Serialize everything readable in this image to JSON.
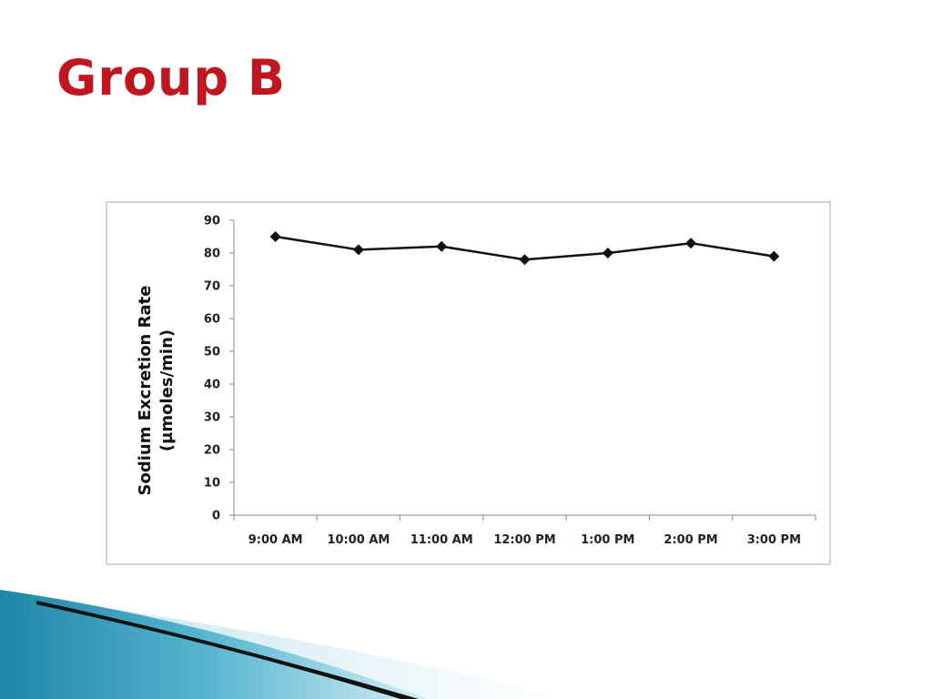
{
  "slide": {
    "title": "Group B"
  },
  "colors": {
    "title": "#c0161f",
    "line": "#111111",
    "marker": "#111111"
  },
  "chart_data": {
    "type": "line",
    "title": "",
    "xlabel": "",
    "ylabel_lines": [
      "Sodium Excretion Rate",
      "(µmoles/min)"
    ],
    "categories": [
      "9:00 AM",
      "10:00 AM",
      "11:00 AM",
      "12:00 PM",
      "1:00 PM",
      "2:00 PM",
      "3:00 PM"
    ],
    "series": [
      {
        "values": [
          85,
          81,
          82,
          78,
          80,
          83,
          79
        ],
        "marker": "diamond"
      }
    ],
    "ylim": [
      0,
      90
    ],
    "yticks": [
      0,
      10,
      20,
      30,
      40,
      50,
      60,
      70,
      80,
      90
    ],
    "grid": false,
    "legend": "none"
  }
}
